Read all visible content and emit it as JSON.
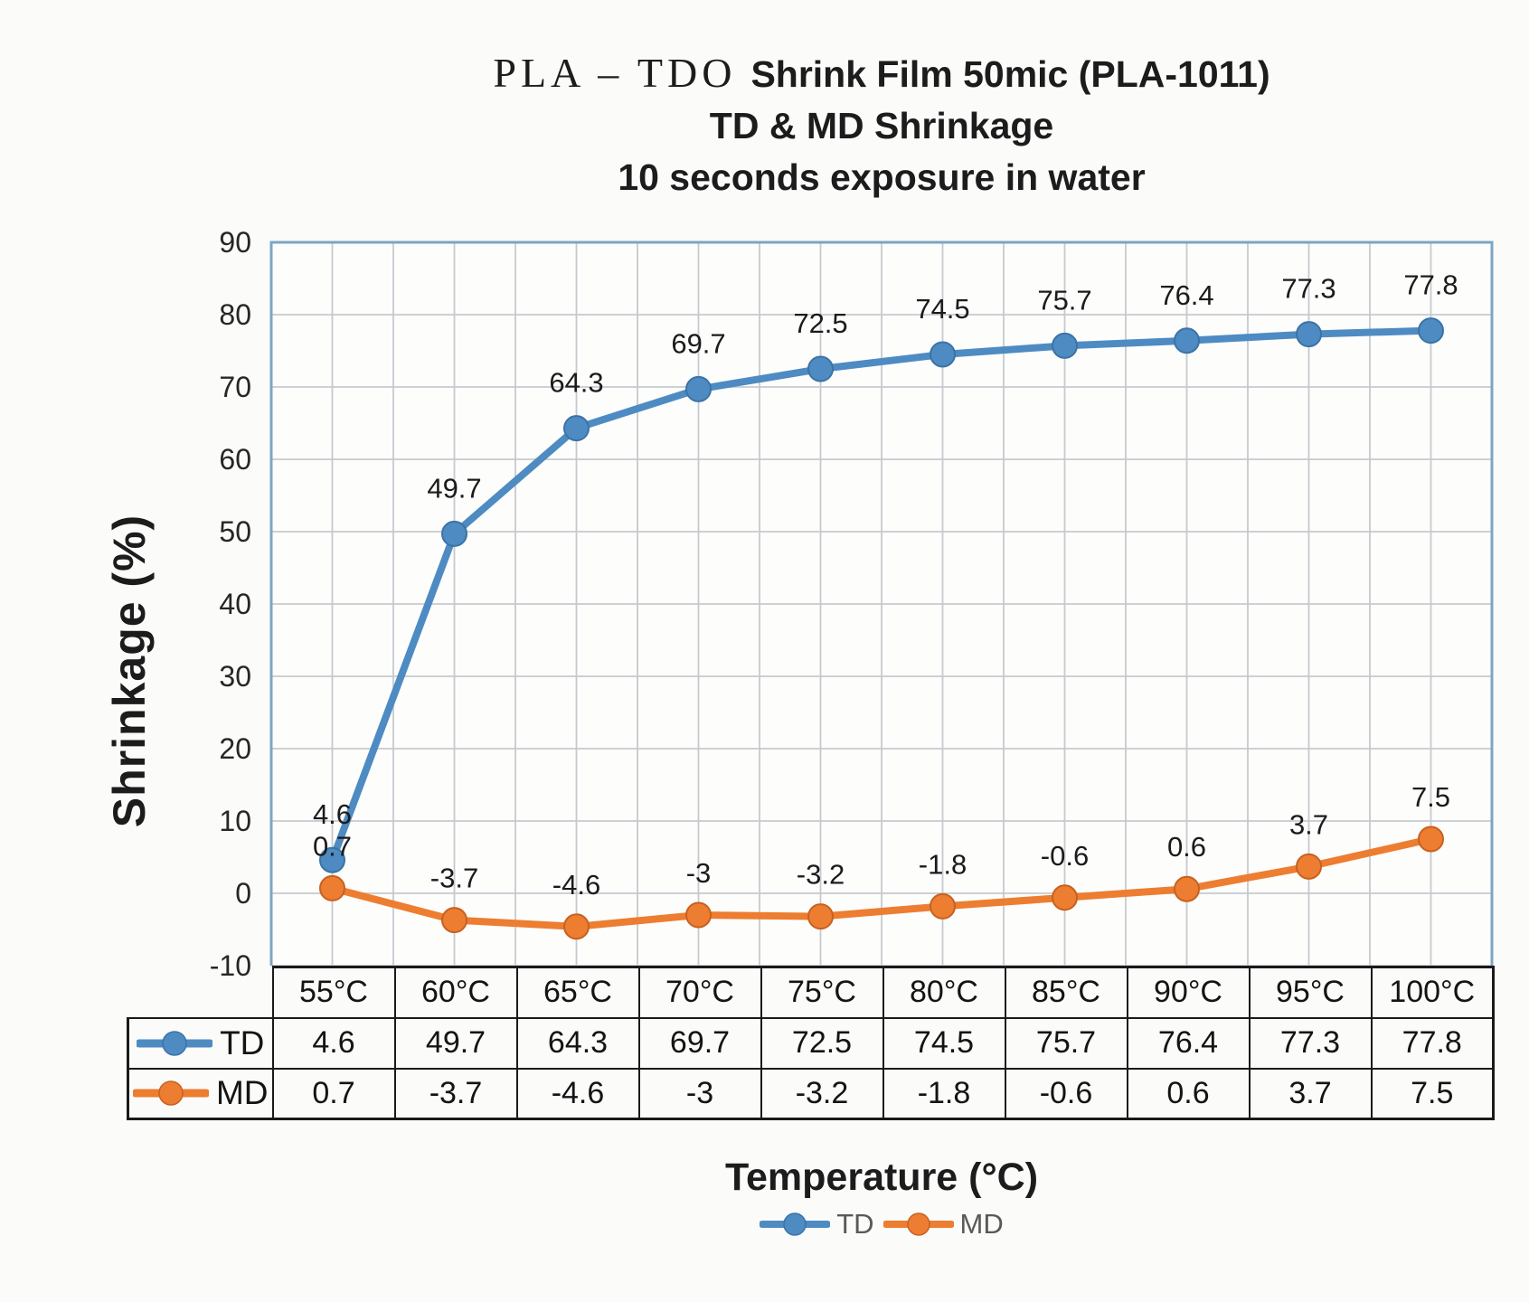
{
  "title": {
    "prefix": "PLA – TDO",
    "line1_main": "Shrink Film 50mic (PLA-1011)",
    "line2": "TD & MD Shrinkage",
    "line3": "10 seconds exposure in water"
  },
  "y_axis": {
    "label": "Shrinkage (%)",
    "ticks": [
      90,
      80,
      70,
      60,
      50,
      40,
      30,
      20,
      10,
      0,
      -10
    ]
  },
  "x_axis": {
    "title": "Temperature (°C)"
  },
  "legend": {
    "items": [
      "TD",
      "MD"
    ]
  },
  "chart_data": {
    "type": "line",
    "title": "PLA – TDO Shrink Film 50mic (PLA-1011) / TD & MD Shrinkage / 10 seconds exposure in water",
    "categories": [
      "55°C",
      "60°C",
      "65°C",
      "70°C",
      "75°C",
      "80°C",
      "85°C",
      "90°C",
      "95°C",
      "100°C"
    ],
    "series": [
      {
        "name": "TD",
        "color": "#4E8BC2",
        "marker_edge": "#3B73A6",
        "values": [
          4.6,
          49.7,
          64.3,
          69.7,
          72.5,
          74.5,
          75.7,
          76.4,
          77.3,
          77.8
        ]
      },
      {
        "name": "MD",
        "color": "#ED7D31",
        "marker_edge": "#C7611F",
        "values": [
          0.7,
          -3.7,
          -4.6,
          -3,
          -3.2,
          -1.8,
          -0.6,
          0.6,
          3.7,
          7.5
        ]
      }
    ],
    "xlabel": "Temperature (°C)",
    "ylabel": "Shrinkage (%)",
    "ylim": [
      -10,
      90
    ],
    "y_tick_step": 10,
    "grid": true,
    "data_labels": true,
    "legend_position": "bottom"
  },
  "colors": {
    "grid": "#C6CACE",
    "plot_border": "#7CA6C4",
    "plot_fill": "#FDFDFC",
    "axis_text": "#262626",
    "data_label_text": "#1B1B1B",
    "table_border": "#1A1A1A",
    "legend_text": "#595959",
    "background": "#FBFBFA"
  }
}
